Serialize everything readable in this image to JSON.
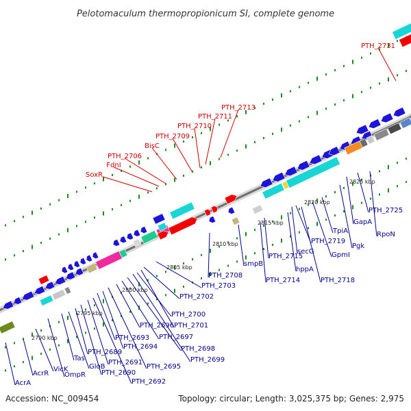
{
  "title": "Pelotomaculum thermopropionicum SI, complete genome",
  "footer": {
    "accession": "Accession: NC_009454",
    "summary": "Topology: circular; Length: 3,025,375 bp; Genes: 2,975"
  },
  "colors": {
    "red_label": "#cc0000",
    "blue_label": "#00008b",
    "backbone": "#777777",
    "ticks": "#1a8a1a",
    "gene_blue": "#1c14d8",
    "gene_cyan": "#19d6d6",
    "gene_red": "#f20000",
    "gene_magenta": "#ef2a9c",
    "gene_green": "#1fcc90",
    "gene_olive": "#6b8a1f",
    "gene_tan": "#c2b67a",
    "gene_orange": "#f58b1e",
    "gene_gray": "#8a8a8a",
    "gene_yellow": "#e6d933"
  },
  "position_marks": [
    "2790 kbp",
    "2795 kbp",
    "2800 kbp",
    "2805 kbp",
    "2810 kbp",
    "2815 kbp",
    "2820 kbp",
    "2825 kbp"
  ],
  "red_labels": [
    "PTH_2731",
    "PTH_2713",
    "PTH_2711",
    "PTH_2710",
    "PTH_2709",
    "BisC",
    "PTH_2706",
    "FdnI",
    "SoxR"
  ],
  "blue_labels": [
    "AcrA",
    "AcrR",
    "VicK",
    "OmpR",
    "Tas",
    "GloB",
    "PTH_2689",
    "PTH_2690",
    "PTH_2691",
    "PTH_2692",
    "PTH_2693",
    "PTH_2694",
    "PTH_2695",
    "PTH_2696",
    "PTH_2697",
    "PTH_2698",
    "PTH_2699",
    "PTH_2700",
    "PTH_2701",
    "PTH_2702",
    "PTH_2703",
    "PTH_2708",
    "smpB",
    "PTH_2714",
    "PTH_2715",
    "hppA",
    "PTH_2718",
    "PTH_2719",
    "secG",
    "GpmI",
    "TpiA",
    "Pgk",
    "GapA",
    "PTH_2725",
    "RpoN"
  ]
}
